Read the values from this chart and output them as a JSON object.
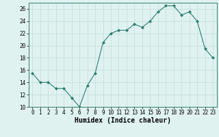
{
  "x": [
    0,
    1,
    2,
    3,
    4,
    5,
    6,
    7,
    8,
    9,
    10,
    11,
    12,
    13,
    14,
    15,
    16,
    17,
    18,
    19,
    20,
    21,
    22,
    23
  ],
  "y": [
    15.5,
    14.0,
    14.0,
    13.0,
    13.0,
    11.5,
    10.0,
    13.5,
    15.5,
    20.5,
    22.0,
    22.5,
    22.5,
    23.5,
    23.0,
    24.0,
    25.5,
    26.5,
    26.5,
    25.0,
    25.5,
    24.0,
    19.5,
    18.0
  ],
  "xlabel": "Humidex (Indice chaleur)",
  "ylim": [
    10,
    27
  ],
  "xlim": [
    -0.5,
    23.5
  ],
  "yticks": [
    10,
    12,
    14,
    16,
    18,
    20,
    22,
    24,
    26
  ],
  "xticks": [
    0,
    1,
    2,
    3,
    4,
    5,
    6,
    7,
    8,
    9,
    10,
    11,
    12,
    13,
    14,
    15,
    16,
    17,
    18,
    19,
    20,
    21,
    22,
    23
  ],
  "line_color": "#2e7d6e",
  "marker": "D",
  "marker_size": 2.0,
  "line_width": 0.8,
  "bg_color": "#dff2f0",
  "grid_color": "#b8d8d4",
  "tick_label_fontsize": 5.5,
  "xlabel_fontsize": 7.0
}
